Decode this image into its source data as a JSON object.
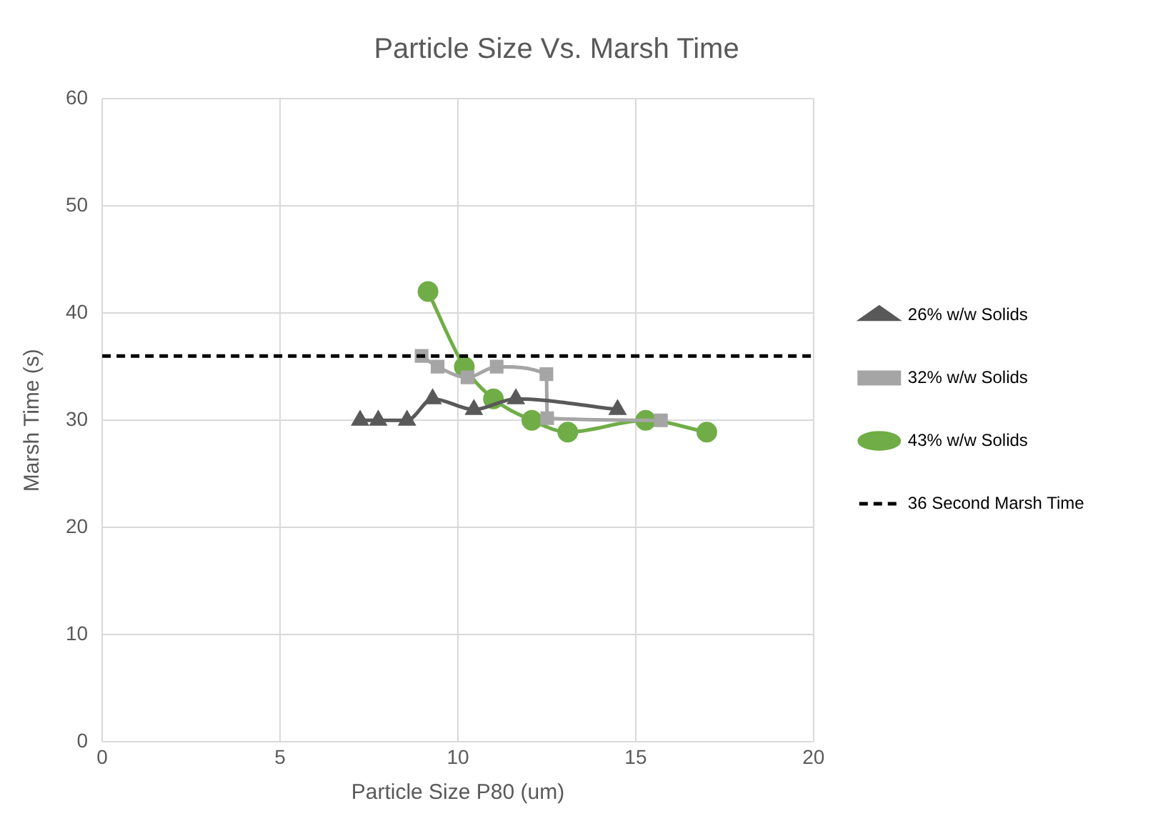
{
  "chart_data": {
    "type": "line",
    "title": "Particle Size Vs. Marsh Time",
    "xlabel": "Particle Size P80 (um)",
    "ylabel": "Marsh Time (s)",
    "xlim": [
      0,
      20
    ],
    "xticks": [
      0,
      5,
      10,
      15,
      20
    ],
    "ylim": [
      0,
      60
    ],
    "yticks": [
      0,
      10,
      20,
      30,
      40,
      50,
      60
    ],
    "grid": true,
    "legend": "right",
    "series": [
      {
        "name": "26% w/w Solids",
        "color": "#595959",
        "marker": "triangle",
        "x": [
          7.25,
          7.76,
          8.57,
          9.29,
          10.45,
          11.63,
          14.49
        ],
        "values": [
          30,
          30,
          30,
          32,
          31,
          32,
          31
        ]
      },
      {
        "name": "32% w/w Solids",
        "color": "#a5a5a5",
        "marker": "square",
        "x": [
          8.98,
          9.43,
          10.27,
          11.09,
          12.49,
          12.51,
          15.71
        ],
        "values": [
          36,
          35,
          34,
          35,
          34.3,
          30.2,
          30
        ]
      },
      {
        "name": "43% w/w Solids",
        "color": "#70ad47",
        "marker": "circle",
        "x": [
          9.16,
          10.18,
          11.0,
          12.08,
          13.09,
          15.28,
          17.0
        ],
        "values": [
          42,
          35,
          32,
          30,
          28.9,
          30,
          28.9
        ]
      }
    ],
    "ref_lines": [
      {
        "axis": "y",
        "value": 36,
        "label": "36 Second Marsh Time",
        "color": "#000000",
        "line_style": "dashed"
      }
    ]
  }
}
